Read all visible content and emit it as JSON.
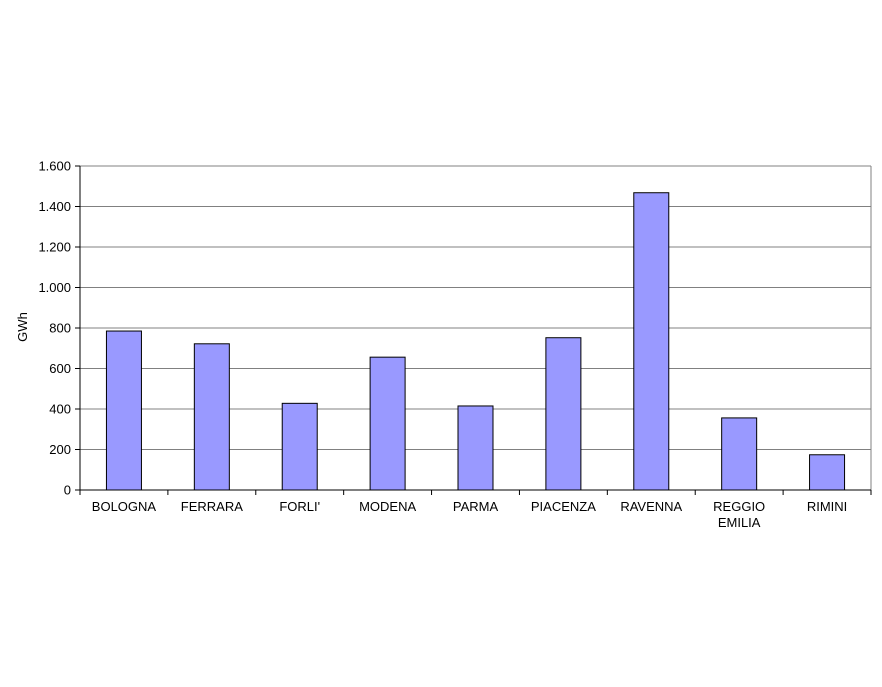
{
  "chart_data": {
    "type": "bar",
    "title": "",
    "xlabel": "",
    "ylabel": "GWh",
    "categories": [
      "BOLOGNA",
      "FERRARA",
      "FORLI'",
      "MODENA",
      "PARMA",
      "PIACENZA",
      "RAVENNA",
      "REGGIO EMILIA",
      "RIMINI"
    ],
    "category_lines": [
      [
        "BOLOGNA"
      ],
      [
        "FERRARA"
      ],
      [
        "FORLI'"
      ],
      [
        "MODENA"
      ],
      [
        "PARMA"
      ],
      [
        "PIACENZA"
      ],
      [
        "RAVENNA"
      ],
      [
        "REGGIO",
        "EMILIA"
      ],
      [
        "RIMINI"
      ]
    ],
    "values": [
      785,
      722,
      428,
      656,
      415,
      752,
      1468,
      356,
      174
    ],
    "ylim": [
      0,
      1600
    ],
    "yticks": [
      0,
      200,
      400,
      600,
      800,
      1000,
      1200,
      1400,
      1600
    ],
    "ytick_labels": [
      "0",
      "200",
      "400",
      "600",
      "800",
      "1.000",
      "1.200",
      "1.400",
      "1.600"
    ],
    "grid": true,
    "legend": "none",
    "colors": {
      "bar_fill": "#9999ff",
      "bar_stroke": "#000000",
      "grid": "#808080",
      "axis": "#000000"
    }
  }
}
